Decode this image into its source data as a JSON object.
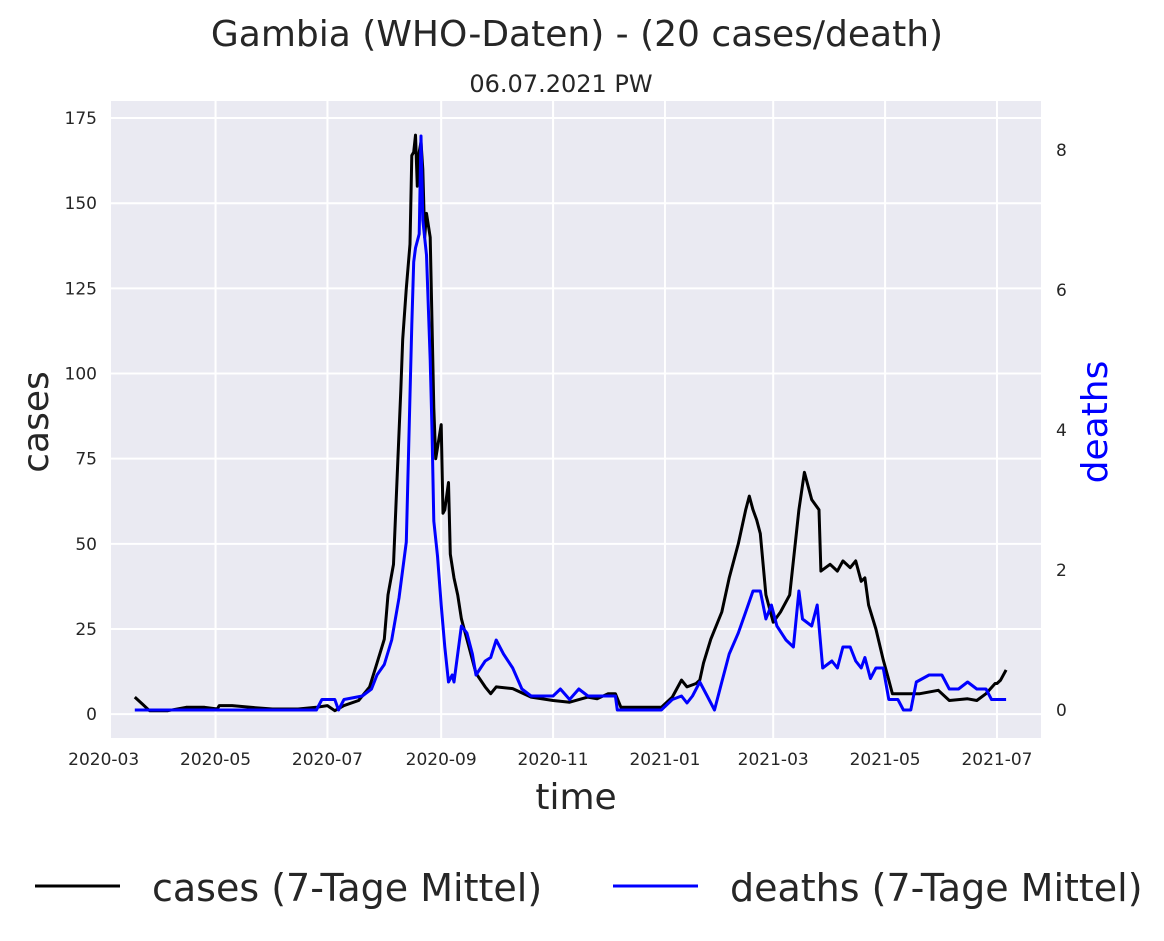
{
  "chart_data": {
    "type": "line",
    "title": "Gambia (WHO-Daten) - (20 cases/death)",
    "subtitle": "06.07.2021 PW",
    "xlabel": "time",
    "ylabel": "cases",
    "y2label": "deaths",
    "x_ticks": [
      "2020-03",
      "2020-05",
      "2020-07",
      "2020-09",
      "2020-11",
      "2021-01",
      "2021-03",
      "2021-05",
      "2021-07"
    ],
    "y_ticks": [
      0,
      25,
      50,
      75,
      100,
      125,
      150,
      175
    ],
    "y2_ticks": [
      0,
      2,
      4,
      6,
      8
    ],
    "xlim": [
      "2020-03-05",
      "2021-07-25"
    ],
    "ylim": [
      -7,
      180
    ],
    "y2lim": [
      -0.4,
      8.7
    ],
    "grid": true,
    "legend_position": "bottom",
    "series": [
      {
        "name": "cases (7-Tage Mittel)",
        "axis": "left",
        "color": "#000000",
        "points": [
          [
            "2020-03-18",
            5
          ],
          [
            "2020-03-22",
            3
          ],
          [
            "2020-03-26",
            1
          ],
          [
            "2020-04-05",
            1
          ],
          [
            "2020-04-15",
            2
          ],
          [
            "2020-04-25",
            2
          ],
          [
            "2020-05-02",
            1.5
          ],
          [
            "2020-05-03",
            2.5
          ],
          [
            "2020-05-10",
            2.5
          ],
          [
            "2020-05-20",
            2
          ],
          [
            "2020-06-01",
            1.5
          ],
          [
            "2020-06-15",
            1.5
          ],
          [
            "2020-06-25",
            2
          ],
          [
            "2020-07-01",
            2.5
          ],
          [
            "2020-07-05",
            1
          ],
          [
            "2020-07-10",
            2.5
          ],
          [
            "2020-07-18",
            4
          ],
          [
            "2020-07-24",
            8
          ],
          [
            "2020-07-28",
            15
          ],
          [
            "2020-08-01",
            22
          ],
          [
            "2020-08-03",
            35
          ],
          [
            "2020-08-06",
            44
          ],
          [
            "2020-08-08",
            70
          ],
          [
            "2020-08-10",
            95
          ],
          [
            "2020-08-11",
            110
          ],
          [
            "2020-08-13",
            125
          ],
          [
            "2020-08-15",
            138
          ],
          [
            "2020-08-16",
            164
          ],
          [
            "2020-08-17",
            165
          ],
          [
            "2020-08-18",
            170
          ],
          [
            "2020-08-19",
            155
          ],
          [
            "2020-08-20",
            165
          ],
          [
            "2020-08-21",
            168
          ],
          [
            "2020-08-22",
            160
          ],
          [
            "2020-08-23",
            140
          ],
          [
            "2020-08-24",
            147
          ],
          [
            "2020-08-26",
            140
          ],
          [
            "2020-08-28",
            90
          ],
          [
            "2020-08-29",
            75
          ],
          [
            "2020-09-01",
            85
          ],
          [
            "2020-09-02",
            59
          ],
          [
            "2020-09-03",
            60
          ],
          [
            "2020-09-05",
            68
          ],
          [
            "2020-09-06",
            47
          ],
          [
            "2020-09-08",
            40
          ],
          [
            "2020-09-10",
            35
          ],
          [
            "2020-09-12",
            28
          ],
          [
            "2020-09-16",
            20
          ],
          [
            "2020-09-20",
            12
          ],
          [
            "2020-09-25",
            8
          ],
          [
            "2020-09-28",
            6
          ],
          [
            "2020-10-01",
            8
          ],
          [
            "2020-10-10",
            7.5
          ],
          [
            "2020-10-20",
            5
          ],
          [
            "2020-11-01",
            4
          ],
          [
            "2020-11-10",
            3.5
          ],
          [
            "2020-11-20",
            5
          ],
          [
            "2020-11-25",
            4.5
          ],
          [
            "2020-12-01",
            6
          ],
          [
            "2020-12-05",
            6
          ],
          [
            "2020-12-08",
            2
          ],
          [
            "2020-12-20",
            2
          ],
          [
            "2020-12-30",
            2
          ],
          [
            "2021-01-05",
            5
          ],
          [
            "2021-01-10",
            10
          ],
          [
            "2021-01-13",
            8
          ],
          [
            "2021-01-18",
            9
          ],
          [
            "2021-01-20",
            10
          ],
          [
            "2021-01-22",
            15
          ],
          [
            "2021-01-26",
            22
          ],
          [
            "2021-02-01",
            30
          ],
          [
            "2021-02-05",
            40
          ],
          [
            "2021-02-10",
            50
          ],
          [
            "2021-02-14",
            60
          ],
          [
            "2021-02-16",
            64
          ],
          [
            "2021-02-18",
            60
          ],
          [
            "2021-02-20",
            57
          ],
          [
            "2021-02-22",
            53
          ],
          [
            "2021-02-25",
            35
          ],
          [
            "2021-03-01",
            27
          ],
          [
            "2021-03-05",
            30
          ],
          [
            "2021-03-10",
            35
          ],
          [
            "2021-03-15",
            60
          ],
          [
            "2021-03-18",
            71
          ],
          [
            "2021-03-22",
            63
          ],
          [
            "2021-03-26",
            60
          ],
          [
            "2021-03-27",
            42
          ],
          [
            "2021-04-01",
            44
          ],
          [
            "2021-04-05",
            42
          ],
          [
            "2021-04-08",
            45
          ],
          [
            "2021-04-12",
            43
          ],
          [
            "2021-04-15",
            45
          ],
          [
            "2021-04-18",
            39
          ],
          [
            "2021-04-20",
            40
          ],
          [
            "2021-04-22",
            32
          ],
          [
            "2021-04-26",
            25
          ],
          [
            "2021-04-30",
            16
          ],
          [
            "2021-05-03",
            10
          ],
          [
            "2021-05-05",
            6
          ],
          [
            "2021-05-10",
            6
          ],
          [
            "2021-05-20",
            6
          ],
          [
            "2021-05-30",
            7
          ],
          [
            "2021-06-05",
            4
          ],
          [
            "2021-06-15",
            4.5
          ],
          [
            "2021-06-20",
            4
          ],
          [
            "2021-06-25",
            6
          ],
          [
            "2021-06-30",
            9
          ],
          [
            "2021-07-01",
            9
          ],
          [
            "2021-07-03",
            10
          ],
          [
            "2021-07-06",
            13
          ]
        ]
      },
      {
        "name": "deaths (7-Tage Mittel)",
        "axis": "right",
        "color": "#0000ff",
        "points": [
          [
            "2020-03-18",
            0
          ],
          [
            "2020-06-25",
            0
          ],
          [
            "2020-06-28",
            0.15
          ],
          [
            "2020-07-05",
            0.15
          ],
          [
            "2020-07-07",
            0
          ],
          [
            "2020-07-10",
            0.15
          ],
          [
            "2020-07-20",
            0.2
          ],
          [
            "2020-07-25",
            0.3
          ],
          [
            "2020-07-28",
            0.5
          ],
          [
            "2020-08-01",
            0.65
          ],
          [
            "2020-08-05",
            1.0
          ],
          [
            "2020-08-09",
            1.6
          ],
          [
            "2020-08-13",
            2.4
          ],
          [
            "2020-08-15",
            4.5
          ],
          [
            "2020-08-16",
            5.5
          ],
          [
            "2020-08-17",
            6.4
          ],
          [
            "2020-08-18",
            6.6
          ],
          [
            "2020-08-20",
            6.8
          ],
          [
            "2020-08-21",
            8.2
          ],
          [
            "2020-08-22",
            7.0
          ],
          [
            "2020-08-24",
            6.5
          ],
          [
            "2020-08-26",
            5.0
          ],
          [
            "2020-08-27",
            4.0
          ],
          [
            "2020-08-28",
            2.7
          ],
          [
            "2020-08-30",
            2.2
          ],
          [
            "2020-09-01",
            1.5
          ],
          [
            "2020-09-03",
            0.9
          ],
          [
            "2020-09-05",
            0.4
          ],
          [
            "2020-09-07",
            0.5
          ],
          [
            "2020-09-08",
            0.4
          ],
          [
            "2020-09-10",
            0.8
          ],
          [
            "2020-09-12",
            1.2
          ],
          [
            "2020-09-15",
            1.1
          ],
          [
            "2020-09-18",
            0.8
          ],
          [
            "2020-09-20",
            0.5
          ],
          [
            "2020-09-25",
            0.7
          ],
          [
            "2020-09-28",
            0.75
          ],
          [
            "2020-10-01",
            1.0
          ],
          [
            "2020-10-05",
            0.8
          ],
          [
            "2020-10-10",
            0.6
          ],
          [
            "2020-10-15",
            0.3
          ],
          [
            "2020-10-20",
            0.2
          ],
          [
            "2020-11-01",
            0.2
          ],
          [
            "2020-11-05",
            0.3
          ],
          [
            "2020-11-10",
            0.15
          ],
          [
            "2020-11-15",
            0.3
          ],
          [
            "2020-11-20",
            0.2
          ],
          [
            "2020-12-01",
            0.2
          ],
          [
            "2020-12-05",
            0.2
          ],
          [
            "2020-12-06",
            0
          ],
          [
            "2020-12-15",
            0
          ],
          [
            "2020-12-30",
            0
          ],
          [
            "2021-01-05",
            0.15
          ],
          [
            "2021-01-10",
            0.2
          ],
          [
            "2021-01-13",
            0.1
          ],
          [
            "2021-01-16",
            0.2
          ],
          [
            "2021-01-20",
            0.4
          ],
          [
            "2021-01-24",
            0.2
          ],
          [
            "2021-01-28",
            0.0
          ],
          [
            "2021-02-01",
            0.4
          ],
          [
            "2021-02-05",
            0.8
          ],
          [
            "2021-02-10",
            1.1
          ],
          [
            "2021-02-14",
            1.4
          ],
          [
            "2021-02-18",
            1.7
          ],
          [
            "2021-02-22",
            1.7
          ],
          [
            "2021-02-25",
            1.3
          ],
          [
            "2021-02-28",
            1.5
          ],
          [
            "2021-03-03",
            1.2
          ],
          [
            "2021-03-08",
            1.0
          ],
          [
            "2021-03-12",
            0.9
          ],
          [
            "2021-03-15",
            1.7
          ],
          [
            "2021-03-17",
            1.3
          ],
          [
            "2021-03-22",
            1.2
          ],
          [
            "2021-03-25",
            1.5
          ],
          [
            "2021-03-28",
            0.6
          ],
          [
            "2021-04-02",
            0.7
          ],
          [
            "2021-04-05",
            0.6
          ],
          [
            "2021-04-08",
            0.9
          ],
          [
            "2021-04-12",
            0.9
          ],
          [
            "2021-04-15",
            0.7
          ],
          [
            "2021-04-18",
            0.6
          ],
          [
            "2021-04-20",
            0.75
          ],
          [
            "2021-04-23",
            0.45
          ],
          [
            "2021-04-26",
            0.6
          ],
          [
            "2021-04-30",
            0.6
          ],
          [
            "2021-05-03",
            0.15
          ],
          [
            "2021-05-08",
            0.15
          ],
          [
            "2021-05-11",
            0
          ],
          [
            "2021-05-15",
            0
          ],
          [
            "2021-05-18",
            0.4
          ],
          [
            "2021-05-25",
            0.5
          ],
          [
            "2021-06-01",
            0.5
          ],
          [
            "2021-06-05",
            0.3
          ],
          [
            "2021-06-10",
            0.3
          ],
          [
            "2021-06-15",
            0.4
          ],
          [
            "2021-06-20",
            0.3
          ],
          [
            "2021-06-25",
            0.3
          ],
          [
            "2021-06-28",
            0.15
          ],
          [
            "2021-07-06",
            0.15
          ]
        ]
      }
    ]
  }
}
